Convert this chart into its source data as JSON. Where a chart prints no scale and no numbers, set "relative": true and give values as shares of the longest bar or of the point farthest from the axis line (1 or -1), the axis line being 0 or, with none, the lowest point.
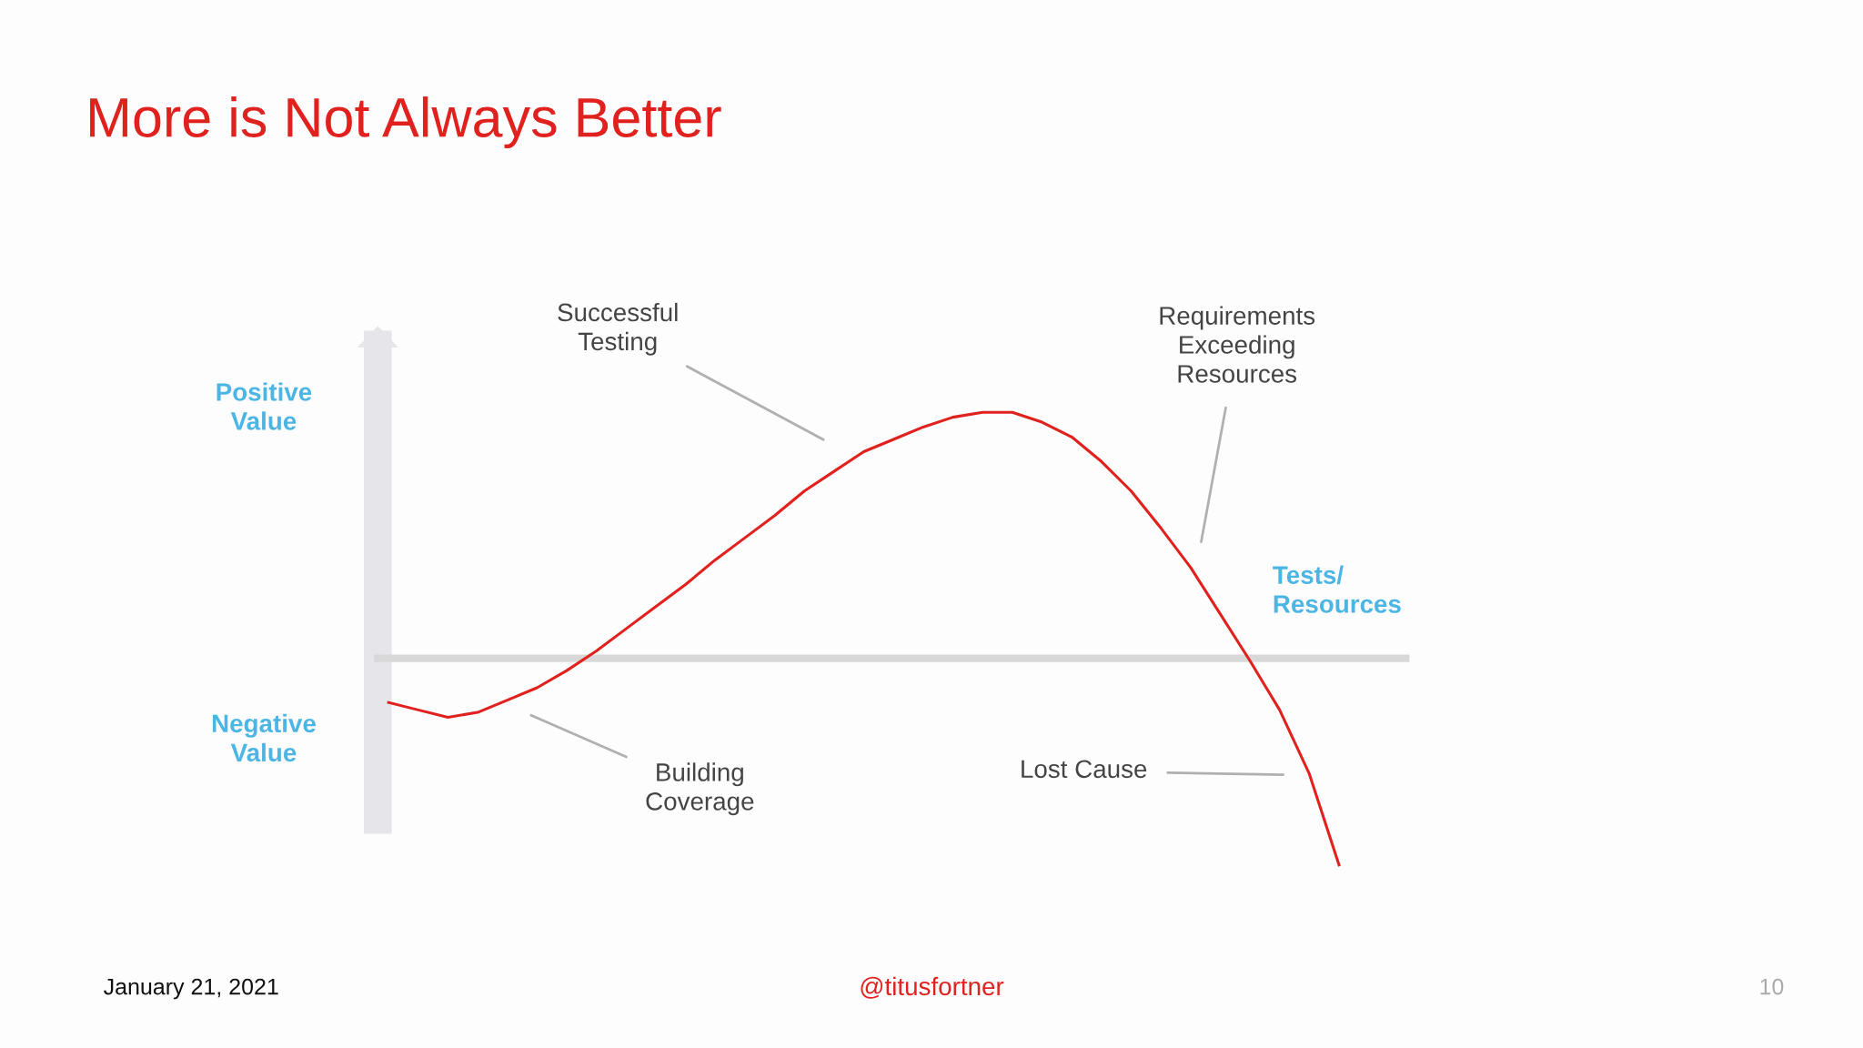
{
  "chart_data": {
    "type": "line",
    "relative": true,
    "title": "More is Not Always Better",
    "categories": [
      null,
      null,
      null,
      null,
      null,
      null,
      null,
      null,
      null,
      null,
      null,
      null,
      null,
      null,
      null,
      null,
      null,
      null,
      null,
      null,
      null,
      null,
      null,
      null,
      null,
      null,
      null,
      null,
      null,
      null,
      null,
      null,
      null
    ],
    "series": [
      {
        "color": "#e0211d",
        "values": [
          -0.18,
          -0.21,
          -0.24,
          -0.22,
          -0.17,
          -0.12,
          -0.05,
          0.03,
          0.12,
          0.21,
          0.3,
          0.4,
          0.49,
          0.58,
          0.68,
          0.76,
          0.84,
          0.89,
          0.94,
          0.98,
          1.0,
          1.0,
          0.96,
          0.9,
          0.8,
          0.68,
          0.53,
          0.37,
          0.18,
          -0.01,
          -0.21,
          -0.47,
          -0.84
        ]
      }
    ],
    "xlabel": "Tests/\nResources",
    "annotations": [
      "Positive\nValue",
      "Negative\nValue",
      "Successful\nTesting",
      "Requirements\nExceeding\nResources",
      "Building\nCoverage",
      "Lost Cause",
      "January 21, 2021",
      "@titusfortner",
      "10"
    ],
    "grid": false,
    "legend": false,
    "marker": "none",
    "line_style": "solid"
  }
}
